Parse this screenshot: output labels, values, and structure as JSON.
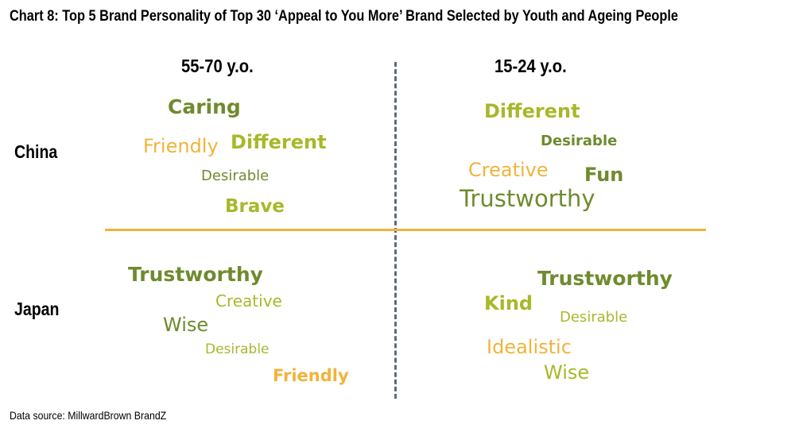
{
  "title": "Chart 8:  Top 5 Brand Personality of Top 30 ‘Appeal to You More’ Brand Selected by Youth and Ageing People",
  "columns": {
    "left": "55-70 y.o.",
    "right": "15-24 y.o."
  },
  "rows": {
    "top": "China",
    "bottom": "Japan"
  },
  "colors": {
    "dark_green": "#6e8b2e",
    "lime": "#a8b82a",
    "orange": "#f0b43a",
    "divider": "#f0b43a"
  },
  "china_old": [
    "Caring",
    "Friendly",
    "Different",
    "Desirable",
    "Brave"
  ],
  "china_young": [
    "Different",
    "Desirable",
    "Creative",
    "Fun",
    "Trustworthy"
  ],
  "japan_old": [
    "Trustworthy",
    "Creative",
    "Wise",
    "Desirable",
    "Friendly"
  ],
  "japan_young": [
    "Trustworthy",
    "Kind",
    "Desirable",
    "Idealistic",
    "Wise"
  ],
  "source": "Data source:  MillwardBrown  BrandZ"
}
